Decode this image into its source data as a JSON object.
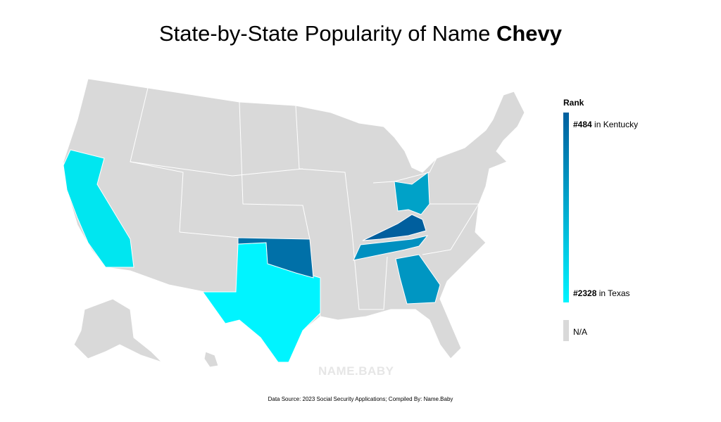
{
  "title": {
    "text": "State-by-State Popularity of Name",
    "name": "Chevy"
  },
  "legend": {
    "title": "Rank",
    "top": {
      "rank": "#484",
      "place": "in Kentucky"
    },
    "bottom": {
      "rank": "#2328",
      "place": "in Texas"
    },
    "na": "N/A",
    "top_color": "#005f9e",
    "bottom_color": "#00f4ff",
    "na_color": "#d9d9d9"
  },
  "watermark": "NAME.BABY",
  "source": "Data Source: 2023 Social Security Applications; Compiled By: Name.Baby"
}
